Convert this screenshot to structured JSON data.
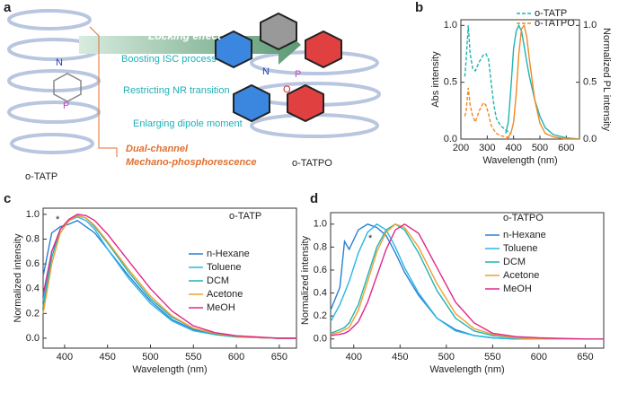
{
  "panel_labels": [
    "a",
    "b",
    "c",
    "d"
  ],
  "scheme": {
    "arrow_label": "Locking effect",
    "effects": [
      "Boosting ISC process",
      "Restricting NR transition",
      "Enlarging dipole moment"
    ],
    "outcome": [
      "Dual-channel",
      "Mechano-phosphorescence"
    ],
    "left_name": "o-TATP",
    "right_name": "o-TATPO",
    "atoms": [
      "N",
      "P",
      "N",
      "P",
      "O"
    ]
  },
  "chart_data": [
    {
      "type": "line",
      "xlabel": "Wavelength (nm)",
      "ylabel": "Abs intensity",
      "y2label": "Normalized PL intensity",
      "xlim": [
        200,
        650
      ],
      "xticks": [
        200,
        300,
        400,
        500,
        600
      ],
      "ylim": [
        0,
        1.05
      ],
      "yticks": [
        {
          "value": 0,
          "label": "0.0"
        },
        0.5,
        {
          "value": 1,
          "label": "1.0"
        }
      ],
      "y2lim": [
        0,
        1.05
      ],
      "y2ticks": [
        {
          "value": 0,
          "label": "0.0"
        },
        0.5,
        {
          "value": 1,
          "label": "1.0"
        }
      ],
      "series": [
        {
          "name": "o-TATP",
          "color": "#1fb3b3",
          "dash": true,
          "x": [
            215,
            220,
            228,
            235,
            245,
            255,
            270,
            285,
            295,
            305,
            315,
            325,
            335,
            350,
            370,
            390
          ],
          "values": [
            0.55,
            0.7,
            1.0,
            0.75,
            0.62,
            0.6,
            0.68,
            0.74,
            0.75,
            0.7,
            0.5,
            0.3,
            0.18,
            0.12,
            0.08,
            0.05
          ]
        },
        {
          "name": "o-TATPO",
          "color": "#f08a24",
          "dash": true,
          "x": [
            215,
            220,
            228,
            235,
            245,
            255,
            270,
            285,
            295,
            305,
            315,
            325,
            335,
            350,
            370,
            390
          ],
          "values": [
            0.2,
            0.25,
            0.45,
            0.3,
            0.2,
            0.15,
            0.25,
            0.32,
            0.3,
            0.22,
            0.12,
            0.08,
            0.05,
            0.03,
            0.02,
            0.01
          ]
        },
        {
          "color": "#1fb3b3",
          "axis": "y2",
          "x": [
            370,
            380,
            390,
            400,
            410,
            420,
            430,
            440,
            450,
            460,
            480,
            500,
            520,
            550,
            600,
            650
          ],
          "values": [
            0.05,
            0.15,
            0.45,
            0.8,
            0.95,
            1.0,
            0.95,
            0.82,
            0.68,
            0.55,
            0.35,
            0.2,
            0.1,
            0.04,
            0.01,
            0
          ]
        },
        {
          "color": "#f08a24",
          "axis": "y2",
          "x": [
            370,
            380,
            390,
            400,
            410,
            420,
            430,
            440,
            450,
            460,
            480,
            500,
            520,
            550,
            600,
            650
          ],
          "values": [
            0,
            0.02,
            0.05,
            0.15,
            0.4,
            0.75,
            0.97,
            1.0,
            0.9,
            0.7,
            0.35,
            0.14,
            0.05,
            0.02,
            0,
            0
          ]
        }
      ]
    },
    {
      "type": "line",
      "xlabel": "Wavelength (nm)",
      "ylabel": "Normalized intensity",
      "annotations": [
        "o-TATP",
        "*"
      ],
      "xlim": [
        375,
        670
      ],
      "xticks": [
        400,
        450,
        500,
        550,
        600,
        650
      ],
      "ylim": [
        -0.08,
        1.05
      ],
      "yticks": [
        {
          "value": 0,
          "label": "0.0"
        },
        0.2,
        0.4,
        0.6,
        0.8,
        {
          "value": 1,
          "label": "1.0"
        }
      ],
      "x": [
        375,
        385,
        395,
        405,
        415,
        425,
        435,
        450,
        475,
        500,
        525,
        550,
        575,
        600,
        625,
        650,
        670
      ],
      "series": [
        {
          "name": "n-Hexane",
          "color": "#2a7fd4",
          "values": [
            0.5,
            0.85,
            0.9,
            0.92,
            0.95,
            0.9,
            0.85,
            0.72,
            0.5,
            0.3,
            0.15,
            0.07,
            0.03,
            0.015,
            0.005,
            0,
            0
          ]
        },
        {
          "name": "Toluene",
          "color": "#29b6e8",
          "values": [
            0.3,
            0.7,
            0.85,
            0.95,
            0.98,
            0.95,
            0.88,
            0.72,
            0.48,
            0.28,
            0.14,
            0.06,
            0.03,
            0.01,
            0.005,
            0,
            0
          ]
        },
        {
          "name": "DCM",
          "color": "#1fb3b3",
          "values": [
            0.25,
            0.65,
            0.88,
            0.95,
            0.99,
            0.97,
            0.9,
            0.77,
            0.53,
            0.32,
            0.17,
            0.08,
            0.03,
            0.01,
            0.005,
            0,
            0
          ]
        },
        {
          "name": "Acetone",
          "color": "#f0a030",
          "values": [
            0.2,
            0.6,
            0.85,
            0.95,
            0.99,
            0.97,
            0.91,
            0.78,
            0.55,
            0.34,
            0.18,
            0.08,
            0.04,
            0.015,
            0.005,
            0,
            0
          ]
        },
        {
          "name": "MeOH",
          "color": "#e0288a",
          "values": [
            0.35,
            0.7,
            0.88,
            0.96,
            1.0,
            0.99,
            0.95,
            0.84,
            0.62,
            0.4,
            0.22,
            0.1,
            0.045,
            0.02,
            0.01,
            0,
            0
          ]
        }
      ]
    },
    {
      "type": "line",
      "xlabel": "Wavelength (nm)",
      "ylabel": "Normalized intensity",
      "annotations": [
        "o-TATPO",
        "*"
      ],
      "xlim": [
        375,
        670
      ],
      "xticks": [
        400,
        450,
        500,
        550,
        600,
        650
      ],
      "ylim": [
        -0.08,
        1.1
      ],
      "yticks": [
        {
          "value": 0,
          "label": "0.0"
        },
        0.2,
        0.4,
        0.6,
        0.8,
        {
          "value": 1,
          "label": "1.0"
        }
      ],
      "x": [
        375,
        385,
        390,
        395,
        405,
        415,
        425,
        435,
        445,
        455,
        470,
        490,
        510,
        530,
        550,
        575,
        600,
        650,
        670
      ],
      "series": [
        {
          "name": "n-Hexane",
          "color": "#2a7fd4",
          "values": [
            0.25,
            0.45,
            0.85,
            0.78,
            0.95,
            1.0,
            0.97,
            0.9,
            0.75,
            0.58,
            0.38,
            0.18,
            0.08,
            0.03,
            0.01,
            0,
            0,
            0,
            0
          ]
        },
        {
          "name": "Toluene",
          "color": "#29b6e8",
          "values": [
            0.15,
            0.3,
            0.4,
            0.5,
            0.75,
            0.93,
            1.0,
            0.95,
            0.8,
            0.62,
            0.4,
            0.18,
            0.07,
            0.03,
            0.01,
            0,
            0,
            0,
            0
          ]
        },
        {
          "name": "DCM",
          "color": "#1fb3b3",
          "values": [
            0.05,
            0.08,
            0.1,
            0.14,
            0.3,
            0.55,
            0.8,
            0.95,
            1.0,
            0.95,
            0.75,
            0.42,
            0.18,
            0.07,
            0.03,
            0.01,
            0,
            0,
            0
          ]
        },
        {
          "name": "Acetone",
          "color": "#f0a030",
          "values": [
            0.04,
            0.06,
            0.08,
            0.1,
            0.25,
            0.5,
            0.76,
            0.93,
            1.0,
            0.97,
            0.8,
            0.48,
            0.22,
            0.09,
            0.04,
            0.01,
            0,
            0,
            0
          ]
        },
        {
          "name": "MeOH",
          "color": "#e0288a",
          "values": [
            0.03,
            0.04,
            0.05,
            0.07,
            0.15,
            0.32,
            0.55,
            0.78,
            0.95,
            1.0,
            0.92,
            0.62,
            0.32,
            0.14,
            0.05,
            0.02,
            0.01,
            0,
            0
          ]
        }
      ]
    }
  ]
}
